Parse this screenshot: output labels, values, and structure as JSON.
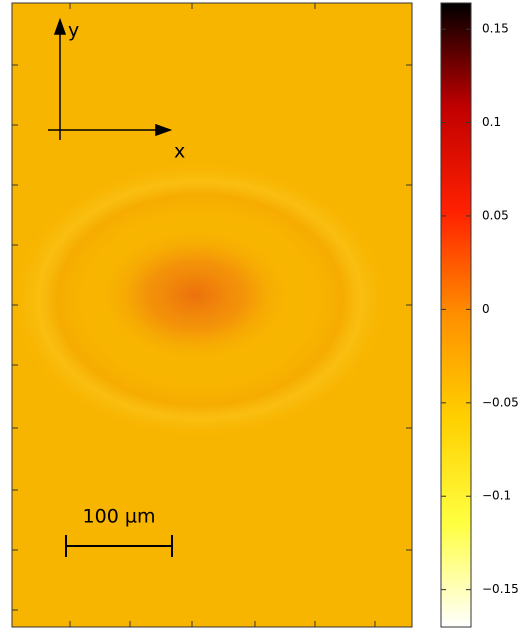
{
  "image": {
    "y_label": "y",
    "x_label": "x",
    "scale_bar_label": "100 µm"
  },
  "colorbar": {
    "lim": [
      -0.17,
      0.164
    ],
    "ticks": [
      {
        "value": 0.15,
        "label": "0.15"
      },
      {
        "value": 0.1,
        "label": "0.1"
      },
      {
        "value": 0.05,
        "label": "0.05"
      },
      0,
      {
        "value": -0.05,
        "label": "−0.05"
      },
      {
        "value": -0.1,
        "label": "−0.1"
      },
      {
        "value": -0.15,
        "label": "−0.15"
      }
    ],
    "colormap": [
      "#ffffff",
      "#ffff40",
      "#ffd000",
      "#ff9000",
      "#ff2000",
      "#c00000",
      "#000000"
    ]
  }
}
